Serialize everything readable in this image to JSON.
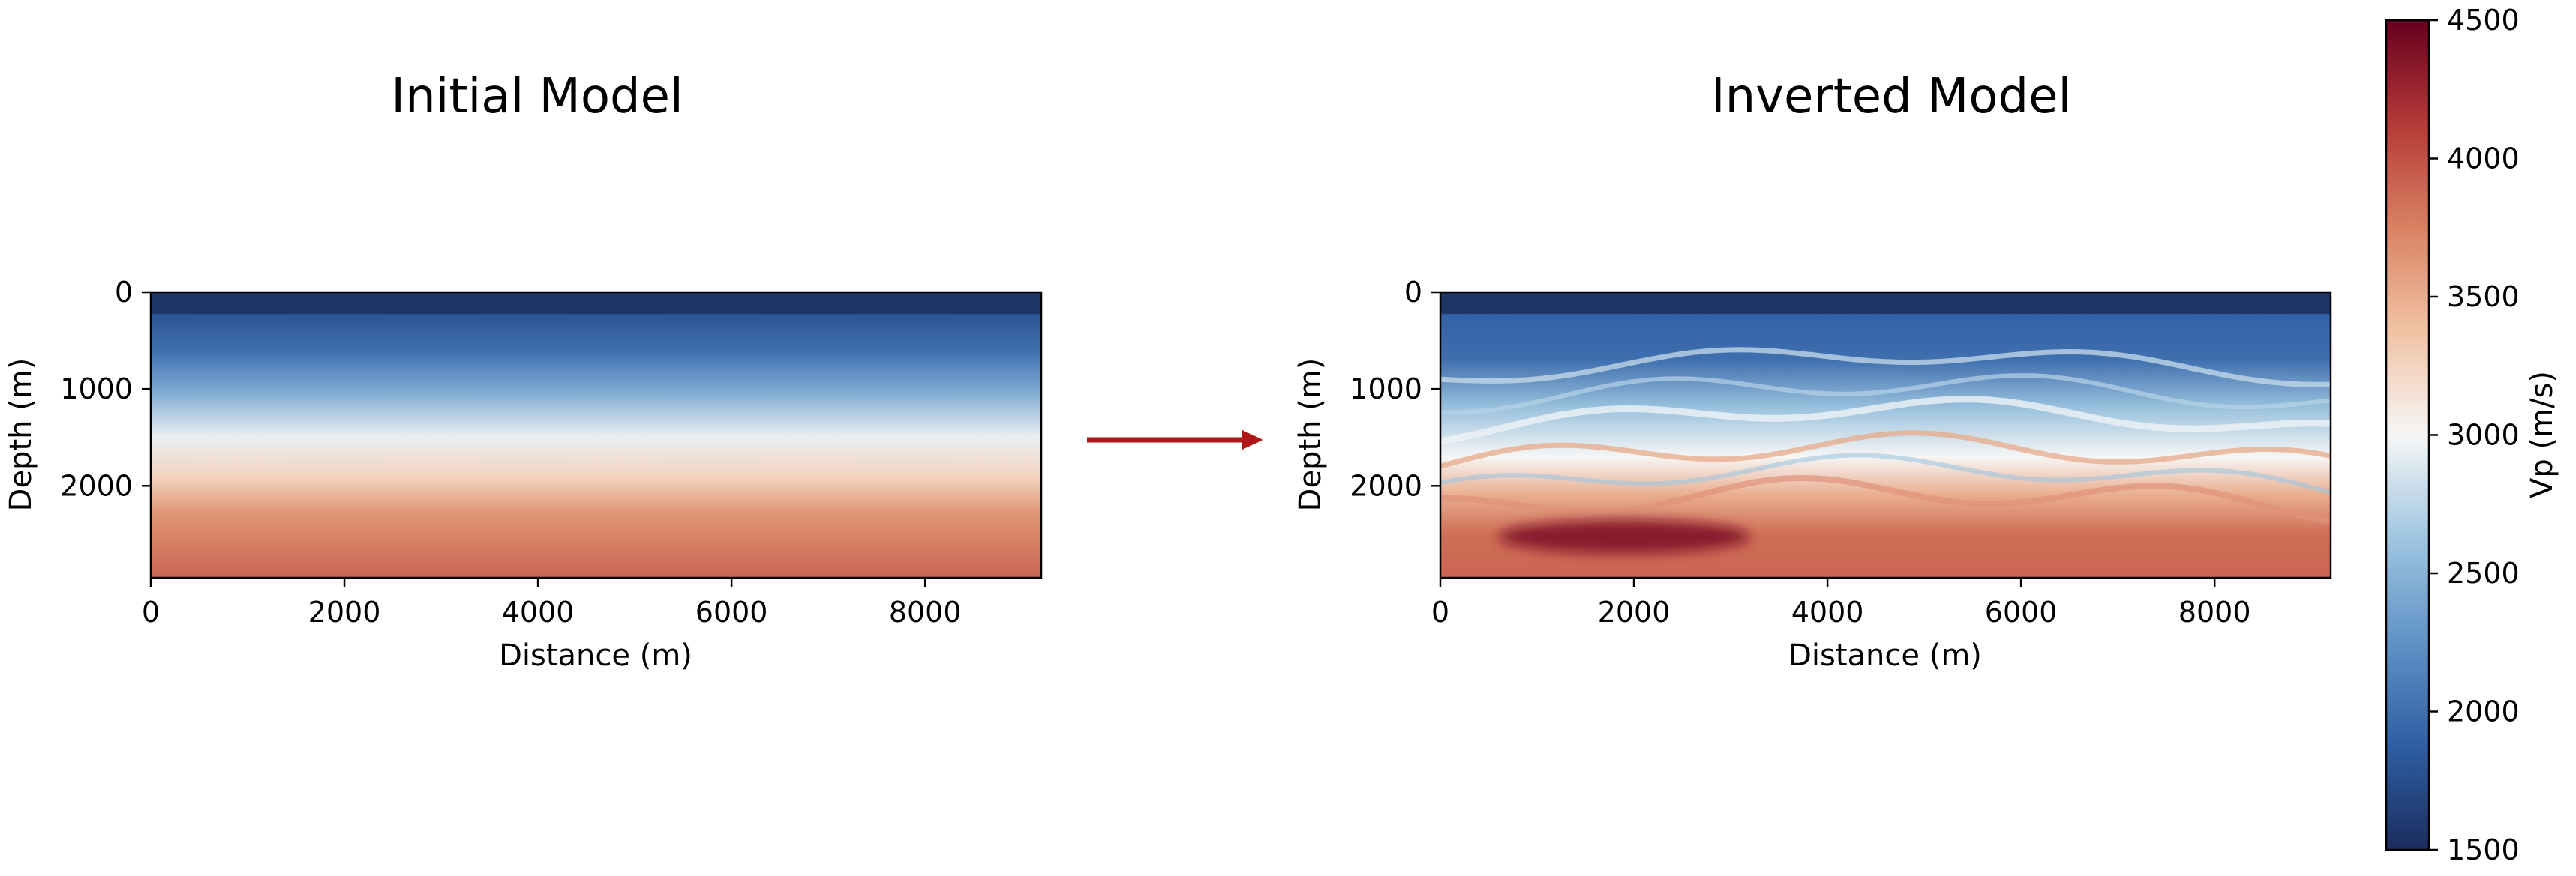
{
  "colors": {
    "arrow": "#b01818",
    "colormap": [
      "#1b2d5d",
      "#2f5ea4",
      "#5f92c6",
      "#9fc5e0",
      "#f6f6f5",
      "#f1c2a4",
      "#d98262",
      "#b43a38",
      "#67001f"
    ]
  },
  "chart_data": [
    {
      "type": "heatmap",
      "title": "Initial Model",
      "xlabel": "Distance (m)",
      "ylabel": "Depth (m)",
      "xlim": [
        0,
        9200
      ],
      "ylim": [
        2950,
        0
      ],
      "xticks": [
        0,
        2000,
        4000,
        6000,
        8000
      ],
      "yticks": [
        0,
        1000,
        2000
      ],
      "xtick_labels": [
        "0",
        "2000",
        "4000",
        "6000",
        "8000"
      ],
      "ytick_labels": [
        "0",
        "1000",
        "2000"
      ],
      "description_profile": "laterally uniform; velocity increases with depth",
      "depth_profile": [
        {
          "depth": 0,
          "vp": 1550
        },
        {
          "depth": 220,
          "vp": 1550
        },
        {
          "depth": 230,
          "vp": 1800
        },
        {
          "depth": 600,
          "vp": 2000
        },
        {
          "depth": 1000,
          "vp": 2400
        },
        {
          "depth": 1500,
          "vp": 2950
        },
        {
          "depth": 1900,
          "vp": 3250
        },
        {
          "depth": 2300,
          "vp": 3650
        },
        {
          "depth": 2950,
          "vp": 3900
        }
      ]
    },
    {
      "type": "heatmap",
      "title": "Inverted Model",
      "xlabel": "Distance (m)",
      "ylabel": "Depth (m)",
      "xlim": [
        0,
        9200
      ],
      "ylim": [
        2950,
        0
      ],
      "xticks": [
        0,
        2000,
        4000,
        6000,
        8000
      ],
      "yticks": [
        0,
        1000,
        2000
      ],
      "xtick_labels": [
        "0",
        "2000",
        "4000",
        "6000",
        "8000"
      ],
      "ytick_labels": [
        "0",
        "1000",
        "2000"
      ],
      "background_profile": [
        {
          "depth": 0,
          "vp": 1550
        },
        {
          "depth": 220,
          "vp": 1550
        },
        {
          "depth": 230,
          "vp": 1900
        },
        {
          "depth": 700,
          "vp": 2000
        },
        {
          "depth": 1200,
          "vp": 2600
        },
        {
          "depth": 1700,
          "vp": 3000
        },
        {
          "depth": 2100,
          "vp": 3500
        },
        {
          "depth": 2500,
          "vp": 3850
        },
        {
          "depth": 2950,
          "vp": 3900
        }
      ],
      "high_velocity_anomaly": {
        "x_range": [
          600,
          3200
        ],
        "depth_range": [
          2350,
          2700
        ],
        "vp": 4400
      }
    }
  ],
  "colorbar": {
    "label": "Vp (m/s)",
    "min": 1500,
    "max": 4500,
    "ticks": [
      1500,
      2000,
      2500,
      3000,
      3500,
      4000,
      4500
    ],
    "tick_labels": [
      "1500",
      "2000",
      "2500",
      "3000",
      "3500",
      "4000",
      "4500"
    ]
  }
}
